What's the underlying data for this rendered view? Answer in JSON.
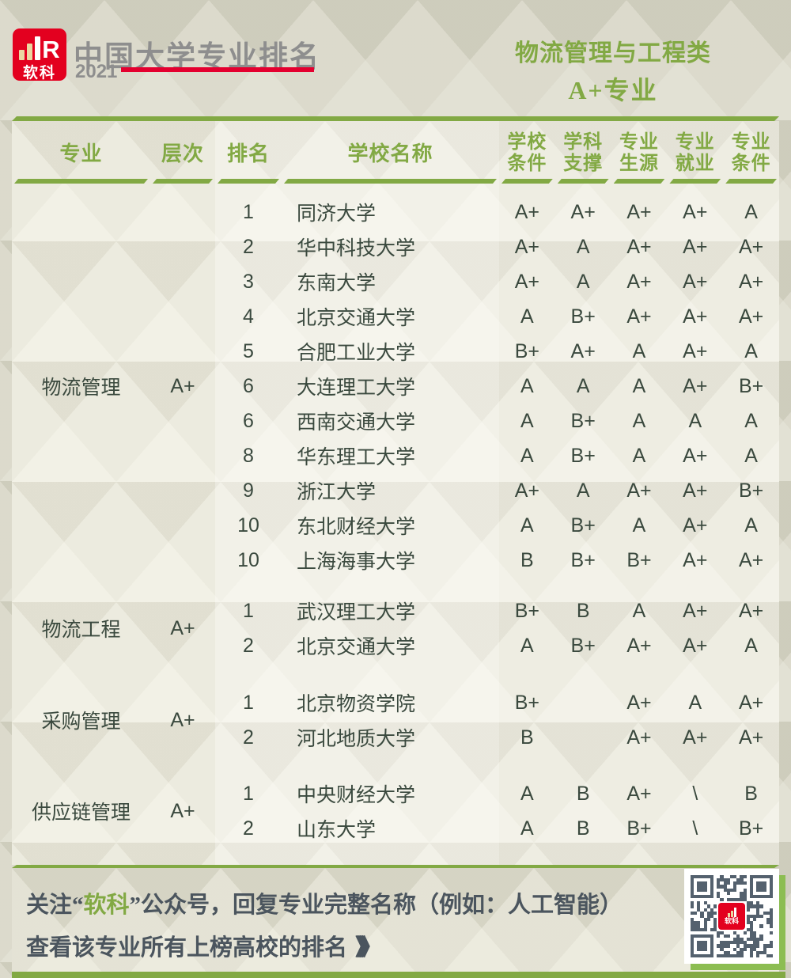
{
  "brand": {
    "logo": {
      "text": "软科",
      "r": "R"
    },
    "title": "中国大学专业排名",
    "year": "2021"
  },
  "category": {
    "title": "物流管理与工程类",
    "subtitle": "A+专业"
  },
  "table": {
    "headers": {
      "major": "专业",
      "level": "层次",
      "rank": "排名",
      "school": "学校名称",
      "scores": [
        {
          "line1": "学校",
          "line2": "条件"
        },
        {
          "line1": "学科",
          "line2": "支撑"
        },
        {
          "line1": "专业",
          "line2": "生源"
        },
        {
          "line1": "专业",
          "line2": "就业"
        },
        {
          "line1": "专业",
          "line2": "条件"
        }
      ]
    },
    "groups": [
      {
        "major": "物流管理",
        "level": "A+",
        "rows": [
          {
            "rank": "1",
            "school": "同济大学",
            "grades": [
              "A+",
              "A+",
              "A+",
              "A+",
              "A"
            ]
          },
          {
            "rank": "2",
            "school": "华中科技大学",
            "grades": [
              "A+",
              "A",
              "A+",
              "A+",
              "A+"
            ]
          },
          {
            "rank": "3",
            "school": "东南大学",
            "grades": [
              "A+",
              "A",
              "A+",
              "A+",
              "A+"
            ]
          },
          {
            "rank": "4",
            "school": "北京交通大学",
            "grades": [
              "A",
              "B+",
              "A+",
              "A+",
              "A+"
            ]
          },
          {
            "rank": "5",
            "school": "合肥工业大学",
            "grades": [
              "B+",
              "A+",
              "A",
              "A+",
              "A"
            ]
          },
          {
            "rank": "6",
            "school": "大连理工大学",
            "grades": [
              "A",
              "A",
              "A",
              "A+",
              "B+"
            ]
          },
          {
            "rank": "6",
            "school": "西南交通大学",
            "grades": [
              "A",
              "B+",
              "A",
              "A",
              "A"
            ]
          },
          {
            "rank": "8",
            "school": "华东理工大学",
            "grades": [
              "A",
              "B+",
              "A",
              "A+",
              "A"
            ]
          },
          {
            "rank": "9",
            "school": "浙江大学",
            "grades": [
              "A+",
              "A",
              "A+",
              "A+",
              "B+"
            ]
          },
          {
            "rank": "10",
            "school": "东北财经大学",
            "grades": [
              "A",
              "B+",
              "A",
              "A+",
              "A"
            ]
          },
          {
            "rank": "10",
            "school": "上海海事大学",
            "grades": [
              "B",
              "B+",
              "B+",
              "A+",
              "A+"
            ]
          }
        ]
      },
      {
        "major": "物流工程",
        "level": "A+",
        "rows": [
          {
            "rank": "1",
            "school": "武汉理工大学",
            "grades": [
              "B+",
              "B",
              "A",
              "A+",
              "A+"
            ]
          },
          {
            "rank": "2",
            "school": "北京交通大学",
            "grades": [
              "A",
              "B+",
              "A+",
              "A+",
              "A"
            ]
          }
        ]
      },
      {
        "major": "采购管理",
        "level": "A+",
        "rows": [
          {
            "rank": "1",
            "school": "北京物资学院",
            "grades": [
              "B+",
              "",
              "A+",
              "A",
              "A+"
            ]
          },
          {
            "rank": "2",
            "school": "河北地质大学",
            "grades": [
              "B",
              "",
              "A+",
              "A+",
              "A+"
            ]
          }
        ]
      },
      {
        "major": "供应链管理",
        "level": "A+",
        "rows": [
          {
            "rank": "1",
            "school": "中央财经大学",
            "grades": [
              "A",
              "B",
              "A+",
              "\\",
              "B"
            ]
          },
          {
            "rank": "2",
            "school": "山东大学",
            "grades": [
              "A",
              "B",
              "B+",
              "\\",
              "B+"
            ]
          }
        ]
      }
    ]
  },
  "footer": {
    "line1_prefix": "关注“",
    "line1_brand": "软科",
    "line1_suffix": "”公众号，回复专业完整名称（例如：人工智能）",
    "line2": "查看该专业所有上榜高校的排名",
    "arrows": "》》》"
  },
  "colors": {
    "green": "#82A944",
    "red": "#E3001F",
    "red_line": "#E4002F",
    "title_gray": "#8E8E8E",
    "body_text": "#3A493E",
    "footer_text": "#4B555E",
    "qr_module": "#54616E",
    "qr_shadow": "#8CBD52"
  }
}
